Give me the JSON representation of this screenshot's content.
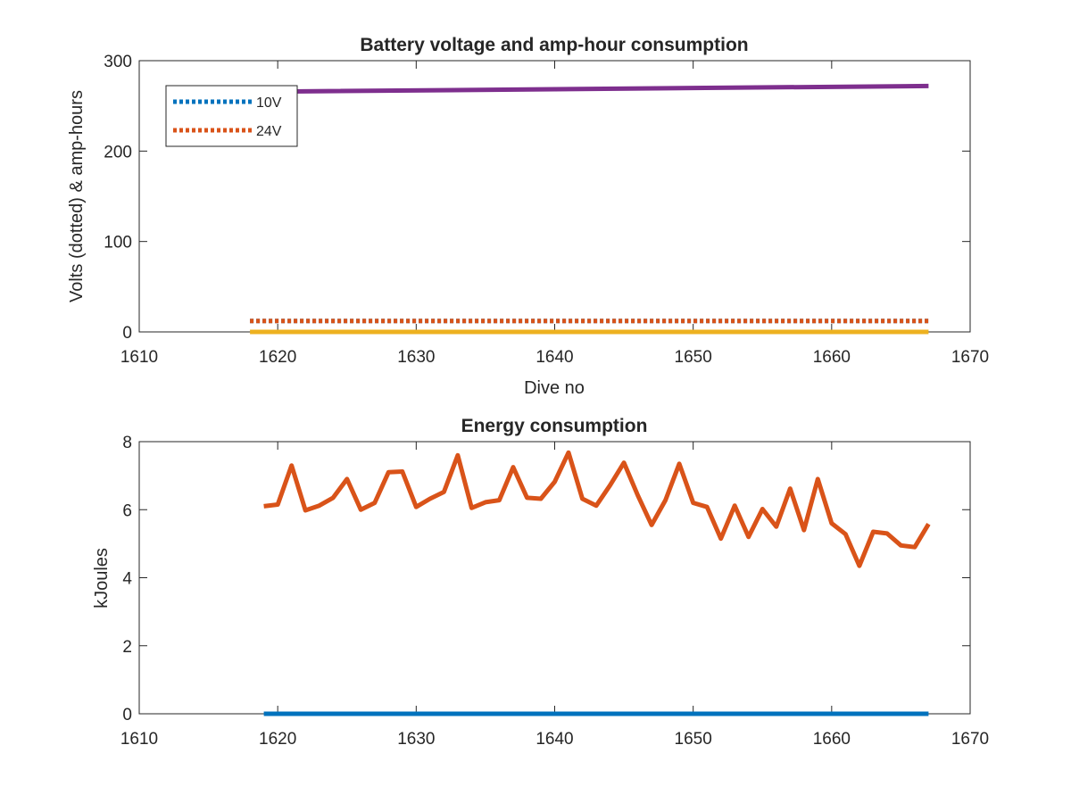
{
  "chart_data": [
    {
      "type": "line",
      "title": "Battery voltage and amp-hour consumption",
      "xlabel": "Dive no",
      "ylabel": "Volts (dotted) & amp-hours",
      "xlim": [
        1610,
        1670
      ],
      "ylim": [
        0,
        300
      ],
      "xticks": [
        1610,
        1620,
        1630,
        1640,
        1650,
        1660,
        1670
      ],
      "yticks": [
        0,
        100,
        200,
        300
      ],
      "legend": {
        "placement": "top-left",
        "entries": [
          "10V",
          "24V"
        ]
      },
      "series": [
        {
          "name": "10V",
          "style": "dotted",
          "color": "#0072BD",
          "x": [
            1618,
            1667
          ],
          "y": [
            12,
            12
          ]
        },
        {
          "name": "24V",
          "style": "dotted",
          "color": "#D95319",
          "x": [
            1618,
            1667
          ],
          "y": [
            12,
            12
          ]
        },
        {
          "style": "solid",
          "color": "#EDB120",
          "x": [
            1618,
            1667
          ],
          "y": [
            0,
            0
          ]
        },
        {
          "style": "solid",
          "color": "#7E2F8E",
          "x": [
            1618,
            1621,
            1667
          ],
          "y": [
            265,
            266,
            272
          ]
        }
      ]
    },
    {
      "type": "line",
      "title": "Energy consumption",
      "xlabel": "",
      "ylabel": "kJoules",
      "xlim": [
        1610,
        1670
      ],
      "ylim": [
        0,
        8
      ],
      "xticks": [
        1610,
        1620,
        1630,
        1640,
        1650,
        1660,
        1670
      ],
      "yticks": [
        0,
        2,
        4,
        6,
        8
      ],
      "series": [
        {
          "style": "solid",
          "color": "#0072BD",
          "x": [
            1619,
            1667
          ],
          "y": [
            0,
            0
          ]
        },
        {
          "style": "solid",
          "color": "#D95319",
          "x": [
            1619,
            1620,
            1621,
            1622,
            1623,
            1624,
            1625,
            1626,
            1627,
            1628,
            1629,
            1630,
            1631,
            1632,
            1633,
            1634,
            1635,
            1636,
            1637,
            1638,
            1639,
            1640,
            1641,
            1642,
            1643,
            1644,
            1645,
            1646,
            1647,
            1648,
            1649,
            1650,
            1651,
            1652,
            1653,
            1654,
            1655,
            1656,
            1657,
            1658,
            1659,
            1660,
            1661,
            1662,
            1663,
            1664,
            1665,
            1666,
            1667
          ],
          "y": [
            6.1,
            6.15,
            7.3,
            5.98,
            6.12,
            6.35,
            6.9,
            6.0,
            6.2,
            7.1,
            7.12,
            6.08,
            6.32,
            6.52,
            7.6,
            6.05,
            6.22,
            6.28,
            7.25,
            6.35,
            6.32,
            6.82,
            7.68,
            6.32,
            6.12,
            6.72,
            7.38,
            6.42,
            5.55,
            6.28,
            7.35,
            6.2,
            6.08,
            5.15,
            6.12,
            5.2,
            6.02,
            5.5,
            6.62,
            5.4,
            6.9,
            5.6,
            5.28,
            4.35,
            5.35,
            5.3,
            4.95,
            4.9,
            5.58
          ]
        }
      ]
    }
  ]
}
